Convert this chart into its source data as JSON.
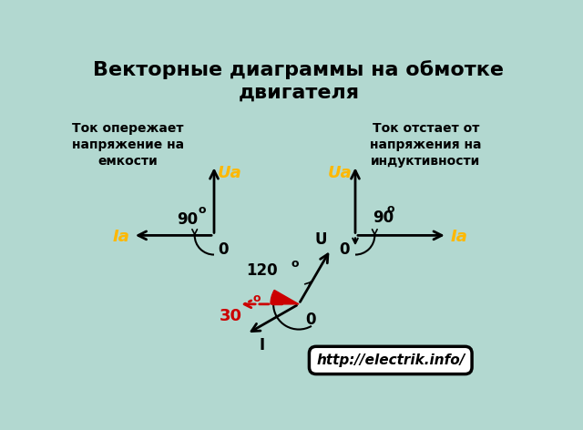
{
  "bg_color": "#b2d8d0",
  "title": "Векторные диаграммы на обмотке\nдвигателя",
  "title_fontsize": 16,
  "url_text": "http://electrik.info/",
  "arrow_color": "#000000",
  "ua_color": "#FFB800",
  "ia_color": "#FFB800",
  "red_color": "#CC0000",
  "left_caption": "Ток опережает\nнапряжение на\nемкости",
  "right_caption": "Ток отстает от\nнапряжения на\nиндуктивности"
}
